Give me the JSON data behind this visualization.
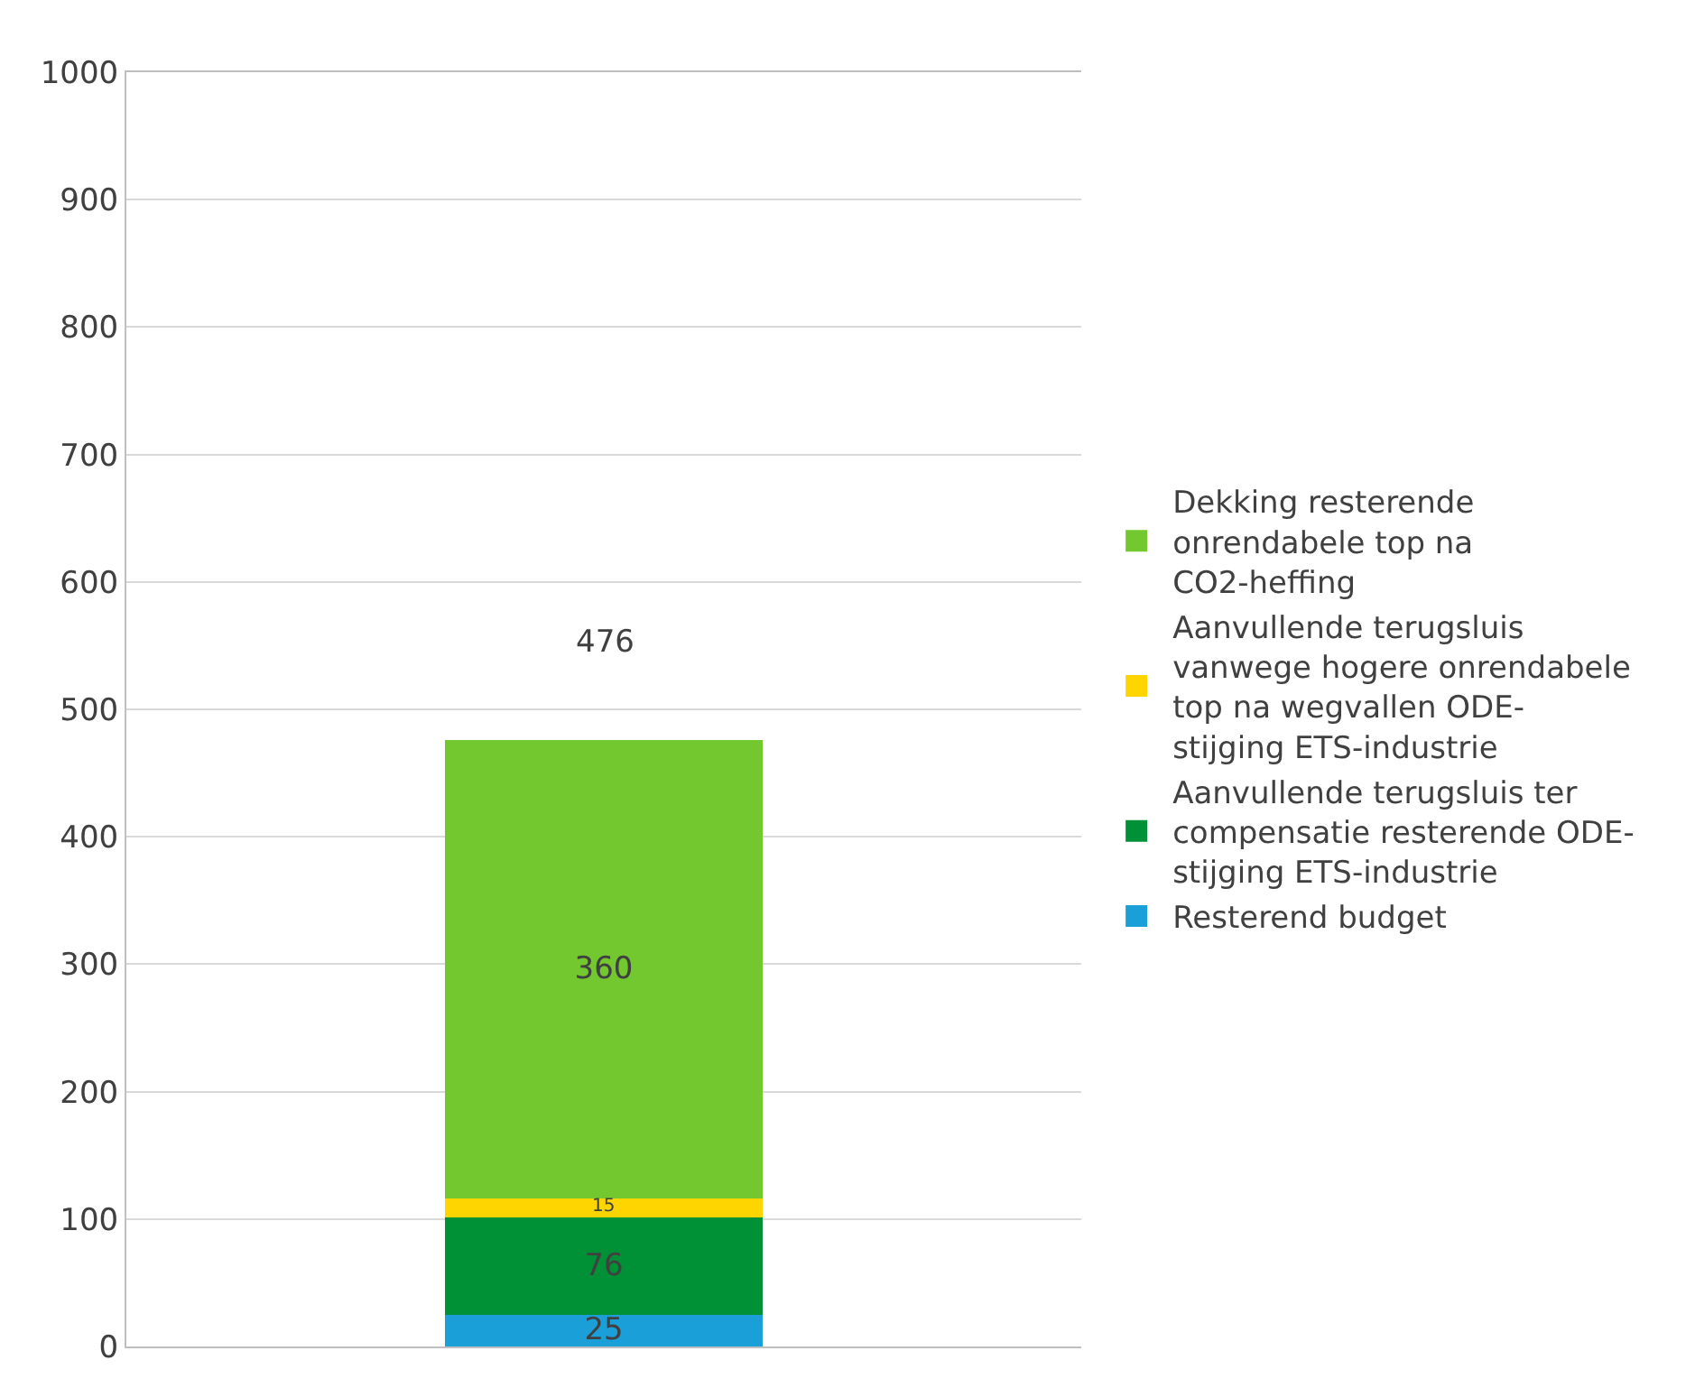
{
  "chart_data": {
    "type": "bar",
    "stacked": true,
    "categories": [
      null
    ],
    "series": [
      {
        "name": "Resterend budget",
        "color": "#1a9fd9",
        "values": [
          25
        ]
      },
      {
        "name": "Aanvullende terugsluis ter compensatie resterende ODE-stijging ETS-industrie",
        "color": "#009036",
        "values": [
          76
        ]
      },
      {
        "name": "Aanvullende terugsluis vanwege hogere onrendabele top na wegvallen ODE-stijging ETS-industrie",
        "color": "#ffd500",
        "values": [
          15
        ]
      },
      {
        "name": "Dekking resterende onrendabele top na CO2-heffing",
        "color": "#73c82f",
        "values": [
          360
        ]
      }
    ],
    "ylim": [
      0,
      1000
    ],
    "yticks": [
      0,
      100,
      200,
      300,
      400,
      500,
      600,
      700,
      800,
      900,
      1000
    ],
    "grid": "y",
    "legend": "right",
    "data_labels": true,
    "totals": [
      "476"
    ]
  }
}
